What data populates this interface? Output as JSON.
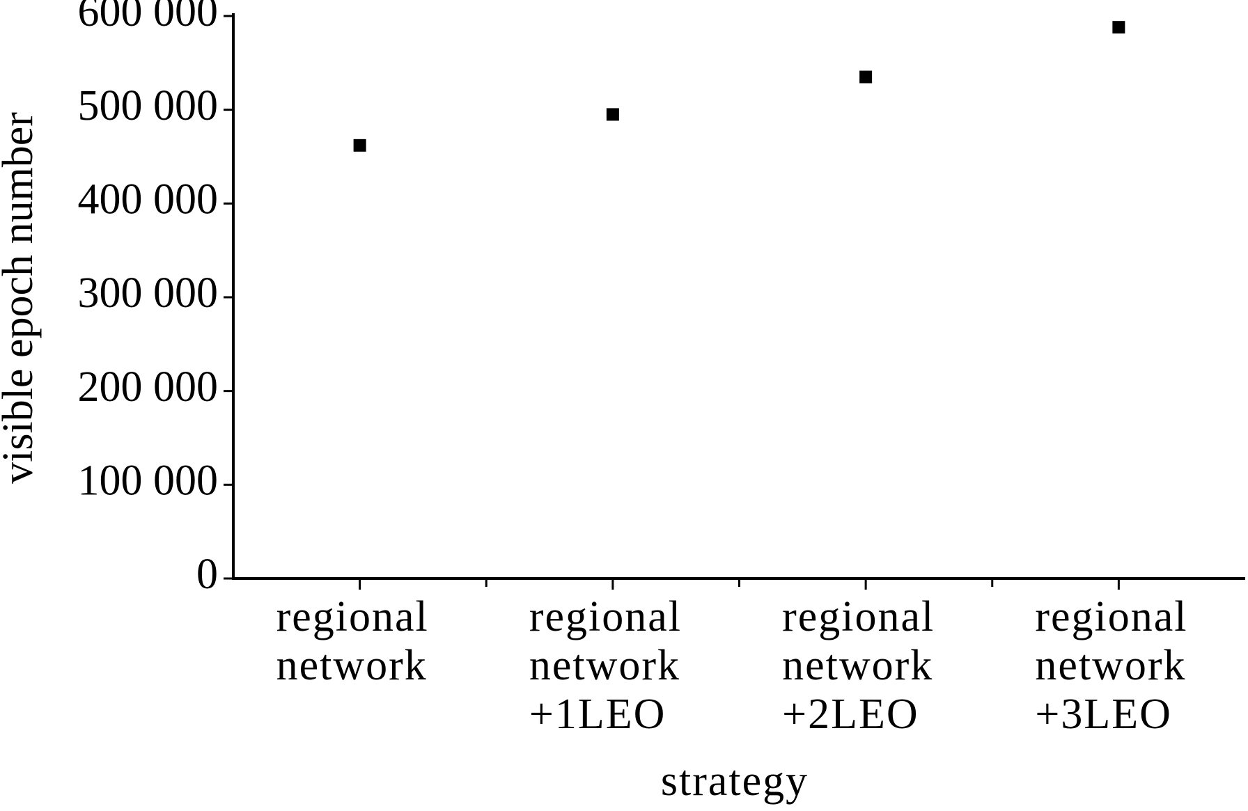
{
  "chart_data": {
    "type": "scatter",
    "x_label": "strategy",
    "y_label": "visible epoch number",
    "categories": [
      "regional network",
      "regional network +1LEO",
      "regional network +2LEO",
      "regional network +3LEO"
    ],
    "values": [
      462000,
      495000,
      535000,
      588000
    ],
    "color": "#000000",
    "ylim": [
      0,
      600000
    ],
    "yticks": [
      {
        "value": 0,
        "label": "0"
      },
      {
        "value": 100000,
        "label": "100 000"
      },
      {
        "value": 200000,
        "label": "200 000"
      },
      {
        "value": 300000,
        "label": "300 000"
      },
      {
        "value": 400000,
        "label": "400 000"
      },
      {
        "value": 500000,
        "label": "500 000"
      },
      {
        "value": 600000,
        "label": "600 000"
      }
    ]
  }
}
